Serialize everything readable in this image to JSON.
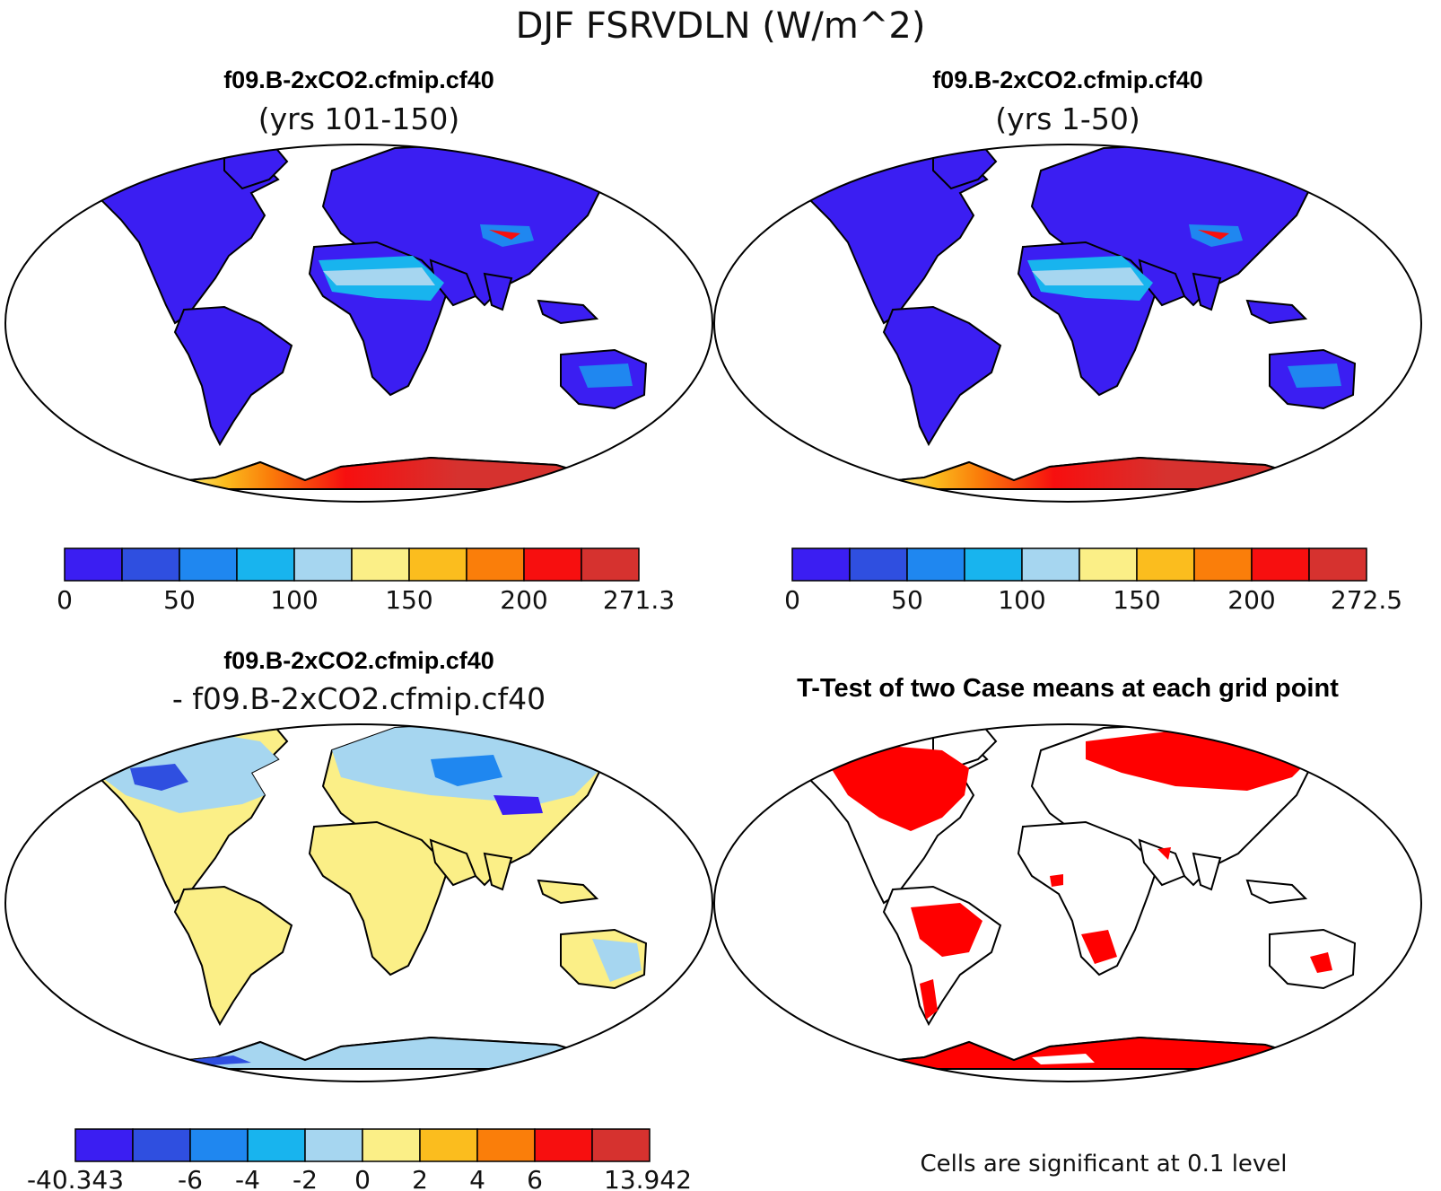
{
  "figure": {
    "title": "DJF FSRVDLN (W/m^2)"
  },
  "colors": {
    "ocean": "#ffffff",
    "outline": "#000000",
    "significant": "#ff0000",
    "abs_scale": [
      "#3b1ef2",
      "#2f4fe0",
      "#1f87f0",
      "#18b4ee",
      "#a6d6f0",
      "#fbef87",
      "#fbbd1e",
      "#fa7e0a",
      "#f70f0f",
      "#d6322f"
    ],
    "diff_scale": [
      "#3b1ef2",
      "#2f4fe0",
      "#1f87f0",
      "#18b4ee",
      "#a6d6f0",
      "#fbef87",
      "#fbbd1e",
      "#fa7e0a",
      "#f70f0f",
      "#d6322f"
    ]
  },
  "panels": [
    {
      "id": "case1",
      "title_line1": "f09.B-2xCO2.cfmip.cf40",
      "title_line2": "(yrs 101-150)",
      "colorbar_labels": [
        "0",
        "50",
        "100",
        "150",
        "200",
        "271.3"
      ],
      "min": "0",
      "max": "271.3"
    },
    {
      "id": "case2",
      "title_line1": "f09.B-2xCO2.cfmip.cf40",
      "title_line2": "(yrs 1-50)",
      "colorbar_labels": [
        "0",
        "50",
        "100",
        "150",
        "200",
        "272.5"
      ],
      "min": "0",
      "max": "272.5"
    },
    {
      "id": "difference",
      "title_line1": "f09.B-2xCO2.cfmip.cf40",
      "title_line2": "- f09.B-2xCO2.cfmip.cf40",
      "colorbar_labels": [
        "-40.343",
        "-6",
        "-4",
        "-2",
        "0",
        "2",
        "4",
        "6",
        "13.942"
      ],
      "min": "-40.343",
      "max": "13.942"
    },
    {
      "id": "ttest",
      "title_line1": "T-Test of two Case means at each grid point",
      "footnote": "Cells are significant at 0.1 level"
    }
  ]
}
